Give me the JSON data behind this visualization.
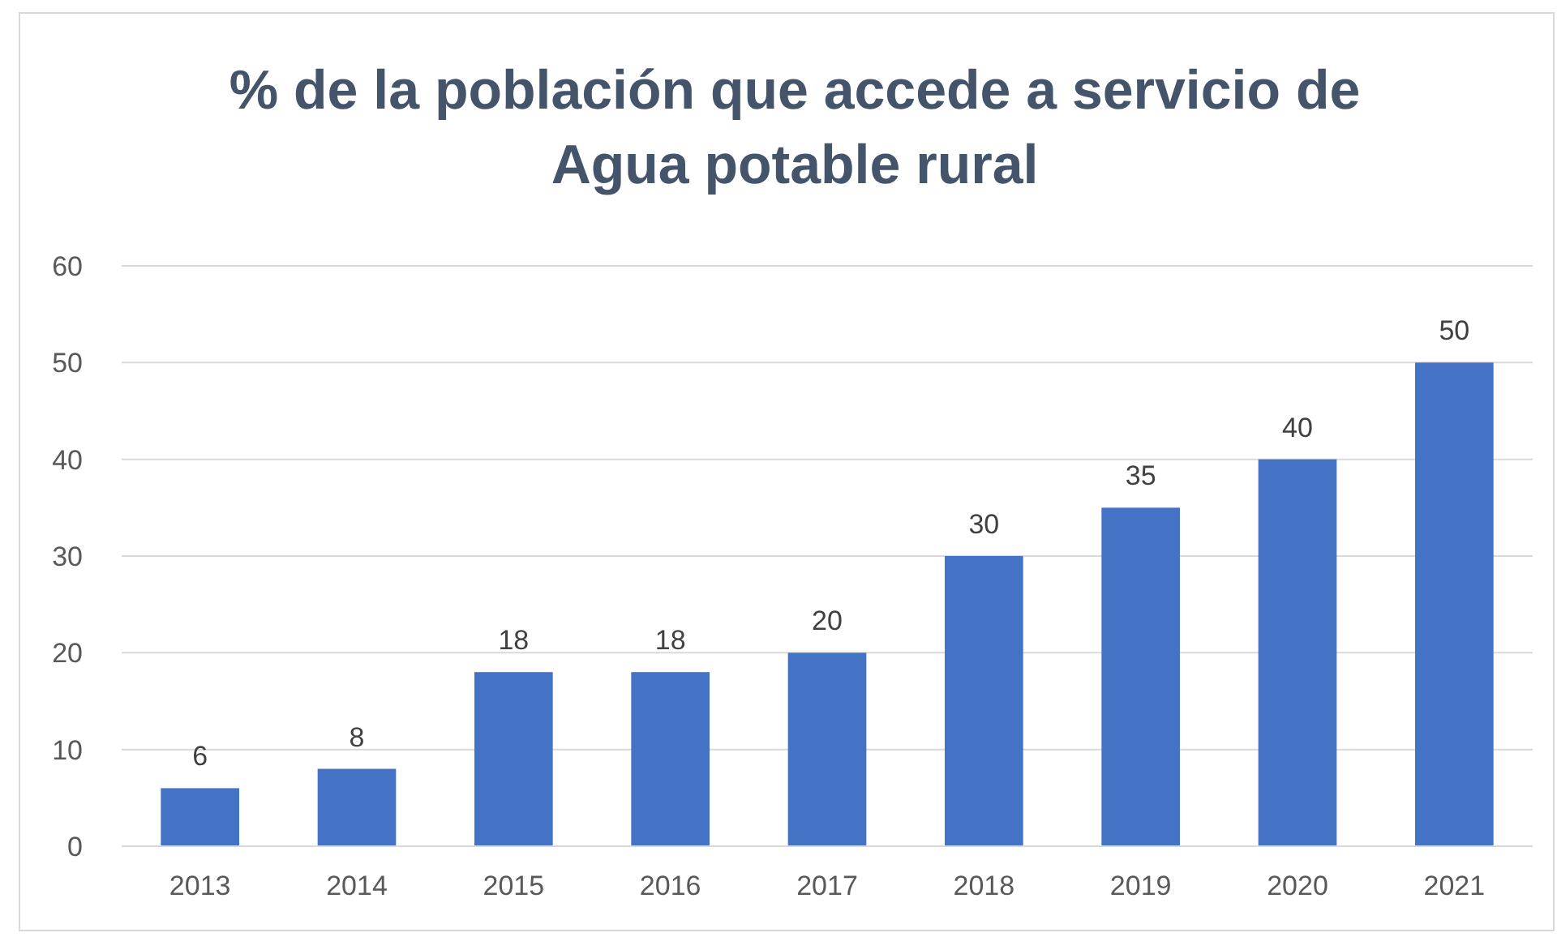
{
  "chart_data": {
    "type": "bar",
    "title": "% de la población que accede a servicio de Agua potable rural",
    "categories": [
      "2013",
      "2014",
      "2015",
      "2016",
      "2017",
      "2018",
      "2019",
      "2020",
      "2021"
    ],
    "values": [
      6,
      8,
      18,
      18,
      20,
      30,
      35,
      40,
      50
    ],
    "color": "#4472c4",
    "ylim": [
      0,
      60
    ],
    "yticks": [
      0,
      10,
      20,
      30,
      40,
      50,
      60
    ],
    "grid": "y",
    "data_labels": true
  }
}
